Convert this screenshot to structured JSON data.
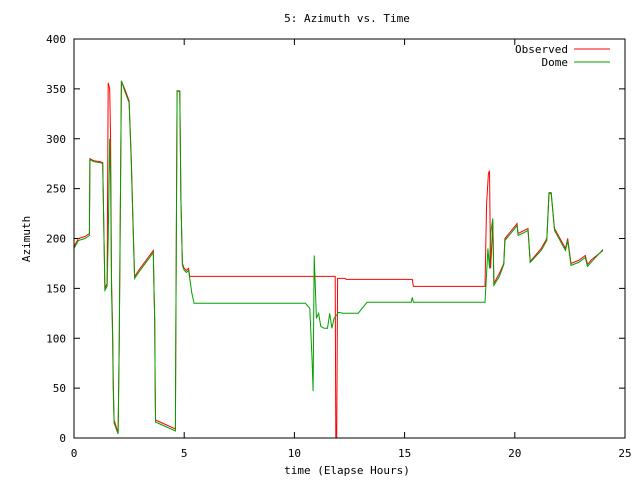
{
  "chart_data": {
    "type": "line",
    "title": "5: Azimuth vs. Time",
    "xlabel": "time (Elapse Hours)",
    "ylabel": "Azimuth",
    "xlim": [
      0,
      25
    ],
    "ylim": [
      0,
      400
    ],
    "xticks": [
      0,
      5,
      10,
      15,
      20,
      25
    ],
    "yticks": [
      0,
      50,
      100,
      150,
      200,
      250,
      300,
      350,
      400
    ],
    "grid": false,
    "legend_position": "top-right",
    "series": [
      {
        "name": "Observed",
        "color": "#ff0000",
        "points": [
          [
            0.0,
            192
          ],
          [
            0.2,
            200
          ],
          [
            0.5,
            202
          ],
          [
            0.7,
            205
          ],
          [
            0.72,
            280
          ],
          [
            0.9,
            278
          ],
          [
            1.2,
            277
          ],
          [
            1.3,
            276
          ],
          [
            1.4,
            150
          ],
          [
            1.5,
            155
          ],
          [
            1.55,
            356
          ],
          [
            1.62,
            350
          ],
          [
            1.66,
            300
          ],
          [
            1.7,
            160
          ],
          [
            1.75,
            110
          ],
          [
            1.78,
            60
          ],
          [
            1.82,
            18
          ],
          [
            2.0,
            5
          ],
          [
            2.05,
            90
          ],
          [
            2.15,
            358
          ],
          [
            2.3,
            350
          ],
          [
            2.5,
            338
          ],
          [
            2.6,
            280
          ],
          [
            2.7,
            200
          ],
          [
            2.75,
            162
          ],
          [
            3.0,
            170
          ],
          [
            3.4,
            182
          ],
          [
            3.6,
            188
          ],
          [
            3.63,
            148
          ],
          [
            3.66,
            118
          ],
          [
            3.68,
            60
          ],
          [
            3.7,
            18
          ],
          [
            4.0,
            15
          ],
          [
            4.6,
            9
          ],
          [
            4.62,
            100
          ],
          [
            4.68,
            348
          ],
          [
            4.8,
            348
          ],
          [
            4.85,
            240
          ],
          [
            4.92,
            175
          ],
          [
            5.0,
            170
          ],
          [
            5.1,
            168
          ],
          [
            5.2,
            170
          ],
          [
            5.25,
            162
          ],
          [
            11.85,
            162
          ],
          [
            11.88,
            0
          ],
          [
            11.92,
            0
          ],
          [
            11.96,
            160
          ],
          [
            12.3,
            160
          ],
          [
            12.35,
            159
          ],
          [
            15.35,
            159
          ],
          [
            15.4,
            152
          ],
          [
            18.65,
            152
          ],
          [
            18.72,
            235
          ],
          [
            18.8,
            265
          ],
          [
            18.85,
            268
          ],
          [
            18.9,
            170
          ],
          [
            19.0,
            215
          ],
          [
            19.05,
            155
          ],
          [
            19.3,
            165
          ],
          [
            19.5,
            175
          ],
          [
            19.55,
            200
          ],
          [
            20.0,
            212
          ],
          [
            20.1,
            215
          ],
          [
            20.15,
            205
          ],
          [
            20.6,
            210
          ],
          [
            20.7,
            177
          ],
          [
            21.2,
            190
          ],
          [
            21.45,
            200
          ],
          [
            21.55,
            245
          ],
          [
            21.65,
            245
          ],
          [
            21.8,
            210
          ],
          [
            22.3,
            190
          ],
          [
            22.4,
            200
          ],
          [
            22.55,
            175
          ],
          [
            22.9,
            178
          ],
          [
            23.2,
            183
          ],
          [
            23.3,
            174
          ],
          [
            23.5,
            179
          ],
          [
            24.0,
            188
          ]
        ]
      },
      {
        "name": "Dome",
        "color": "#00a000",
        "points": [
          [
            0.0,
            190
          ],
          [
            0.2,
            198
          ],
          [
            0.5,
            200
          ],
          [
            0.7,
            203
          ],
          [
            0.72,
            279
          ],
          [
            0.9,
            277
          ],
          [
            1.2,
            276
          ],
          [
            1.3,
            275
          ],
          [
            1.4,
            148
          ],
          [
            1.5,
            152
          ],
          [
            1.55,
            200
          ],
          [
            1.62,
            300
          ],
          [
            1.66,
            260
          ],
          [
            1.7,
            150
          ],
          [
            1.75,
            100
          ],
          [
            1.78,
            50
          ],
          [
            1.82,
            15
          ],
          [
            2.0,
            4
          ],
          [
            2.05,
            95
          ],
          [
            2.15,
            358
          ],
          [
            2.3,
            348
          ],
          [
            2.5,
            336
          ],
          [
            2.6,
            275
          ],
          [
            2.7,
            195
          ],
          [
            2.75,
            160
          ],
          [
            3.0,
            168
          ],
          [
            3.4,
            180
          ],
          [
            3.6,
            186
          ],
          [
            3.63,
            150
          ],
          [
            3.66,
            120
          ],
          [
            3.68,
            60
          ],
          [
            3.7,
            16
          ],
          [
            4.0,
            13
          ],
          [
            4.6,
            7
          ],
          [
            4.62,
            100
          ],
          [
            4.68,
            348
          ],
          [
            4.8,
            347
          ],
          [
            4.85,
            240
          ],
          [
            4.92,
            173
          ],
          [
            5.0,
            168
          ],
          [
            5.1,
            166
          ],
          [
            5.2,
            168
          ],
          [
            5.35,
            145
          ],
          [
            5.45,
            135
          ],
          [
            10.5,
            135
          ],
          [
            10.7,
            130
          ],
          [
            10.8,
            80
          ],
          [
            10.85,
            47
          ],
          [
            10.9,
            183
          ],
          [
            11.0,
            120
          ],
          [
            11.1,
            125
          ],
          [
            11.2,
            112
          ],
          [
            11.35,
            110
          ],
          [
            11.5,
            110
          ],
          [
            11.6,
            125
          ],
          [
            11.7,
            110
          ],
          [
            11.8,
            120
          ],
          [
            12.0,
            126
          ],
          [
            12.2,
            125
          ],
          [
            12.9,
            125
          ],
          [
            13.0,
            128
          ],
          [
            13.3,
            136
          ],
          [
            15.3,
            136
          ],
          [
            15.35,
            141
          ],
          [
            15.4,
            136
          ],
          [
            18.65,
            136
          ],
          [
            18.72,
            165
          ],
          [
            18.78,
            190
          ],
          [
            18.85,
            170
          ],
          [
            18.9,
            205
          ],
          [
            19.0,
            220
          ],
          [
            19.05,
            153
          ],
          [
            19.3,
            162
          ],
          [
            19.5,
            174
          ],
          [
            19.55,
            198
          ],
          [
            20.0,
            210
          ],
          [
            20.1,
            213
          ],
          [
            20.15,
            203
          ],
          [
            20.6,
            208
          ],
          [
            20.7,
            176
          ],
          [
            21.2,
            188
          ],
          [
            21.45,
            198
          ],
          [
            21.55,
            246
          ],
          [
            21.65,
            246
          ],
          [
            21.8,
            208
          ],
          [
            22.3,
            188
          ],
          [
            22.4,
            198
          ],
          [
            22.55,
            173
          ],
          [
            22.9,
            176
          ],
          [
            23.2,
            181
          ],
          [
            23.3,
            172
          ],
          [
            23.5,
            177
          ],
          [
            24.0,
            189
          ]
        ]
      }
    ]
  }
}
